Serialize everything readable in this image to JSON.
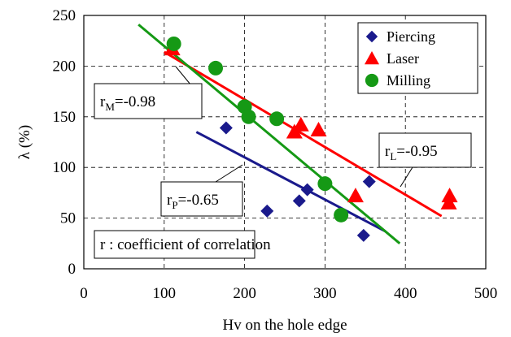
{
  "chart_data": {
    "type": "scatter",
    "xlabel": "Hv on the hole edge",
    "ylabel": "λ  (%)",
    "xlim": [
      0,
      500
    ],
    "ylim": [
      0,
      250
    ],
    "x_ticks": [
      "0",
      "100",
      "200",
      "300",
      "400",
      "500"
    ],
    "y_ticks": [
      "0",
      "50",
      "100",
      "150",
      "200",
      "250"
    ],
    "grid": "dashed",
    "legend_position": "top-right",
    "series": [
      {
        "name": "Piercing",
        "marker": "diamond",
        "color": "#1a1a8c",
        "points": [
          [
            177,
            139
          ],
          [
            228,
            57
          ],
          [
            268,
            67
          ],
          [
            278,
            78
          ],
          [
            348,
            33
          ],
          [
            355,
            86
          ]
        ],
        "trend": [
          [
            140,
            135
          ],
          [
            375,
            37
          ]
        ]
      },
      {
        "name": "Laser",
        "marker": "triangle",
        "color": "#ff0000",
        "points": [
          [
            110,
            217
          ],
          [
            262,
            135
          ],
          [
            270,
            142
          ],
          [
            292,
            137
          ],
          [
            338,
            72
          ],
          [
            454,
            65
          ],
          [
            455,
            72
          ]
        ],
        "trend": [
          [
            100,
            214
          ],
          [
            445,
            52
          ]
        ]
      },
      {
        "name": "Milling",
        "marker": "circle",
        "color": "#159915",
        "points": [
          [
            112,
            222
          ],
          [
            164,
            198
          ],
          [
            200,
            160
          ],
          [
            205,
            150
          ],
          [
            240,
            148
          ],
          [
            300,
            84
          ],
          [
            320,
            53
          ]
        ],
        "trend": [
          [
            68,
            241
          ],
          [
            393,
            25
          ]
        ]
      }
    ],
    "annotations": [
      {
        "id": "milling",
        "base": "r",
        "sub": "M",
        "value": "=-0.98"
      },
      {
        "id": "piercing",
        "base": "r",
        "sub": "P",
        "value": "=-0.65"
      },
      {
        "id": "laser",
        "base": "r",
        "sub": "L",
        "value": "=-0.95"
      }
    ],
    "note": "r : coefficient of correlation"
  }
}
